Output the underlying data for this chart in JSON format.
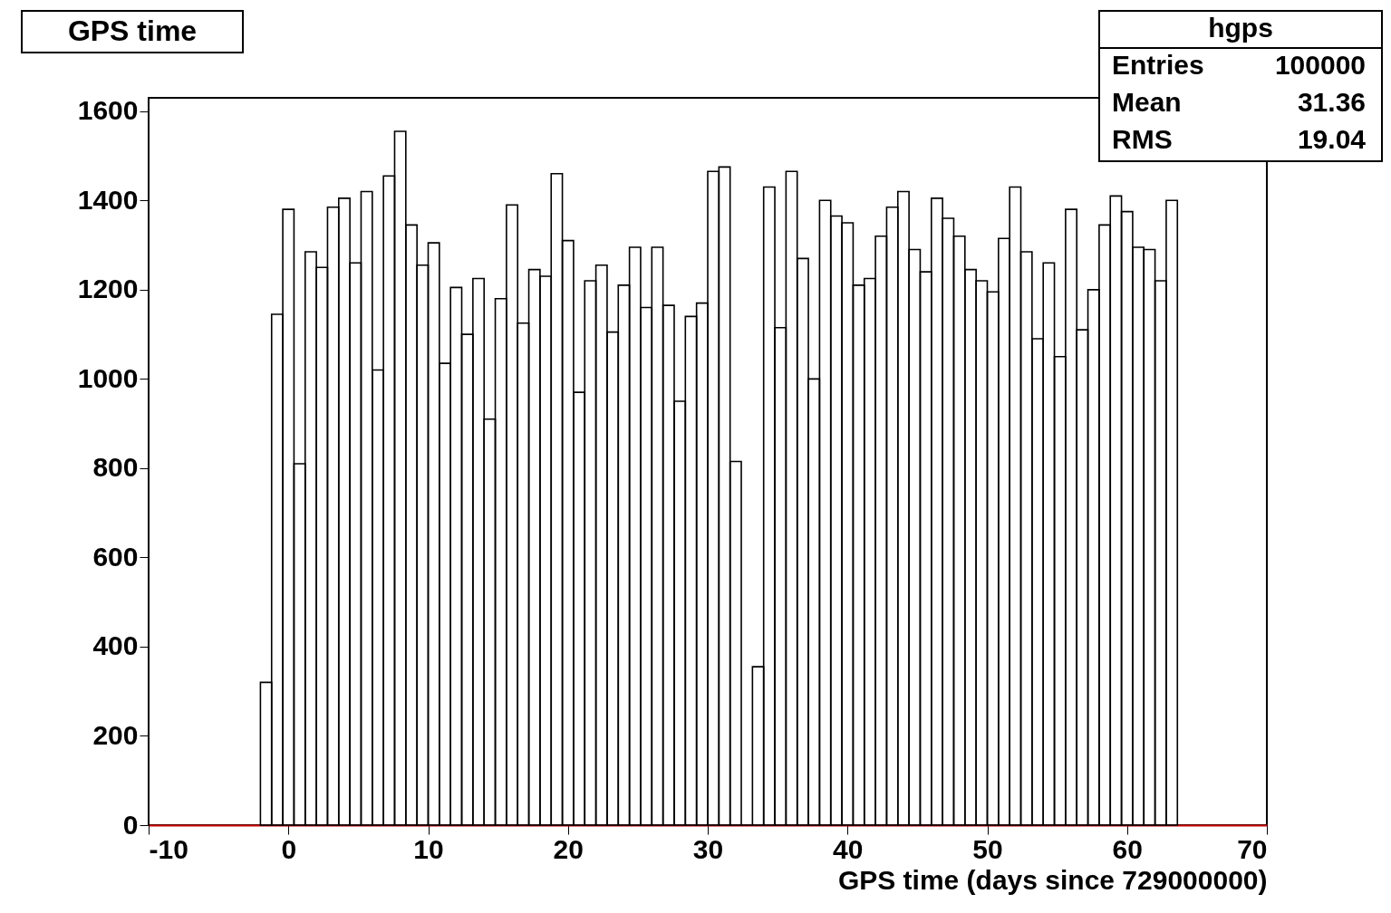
{
  "chart_data": {
    "type": "histogram",
    "title": "GPS time",
    "xlabel": "GPS time (days since 729000000)",
    "bins": [
      -2.0,
      -1.2,
      -0.4,
      0.4,
      1.2,
      2.0,
      2.8,
      3.6,
      4.4,
      5.2,
      6.0,
      6.8,
      7.6,
      8.4,
      9.2,
      10.0,
      10.8,
      11.6,
      12.4,
      13.2,
      14.0,
      14.8,
      15.6,
      16.4,
      17.2,
      18.0,
      18.8,
      19.6,
      20.4,
      21.2,
      22.0,
      22.8,
      23.6,
      24.4,
      25.2,
      26.0,
      26.8,
      27.6,
      28.4,
      29.2,
      30.0,
      30.8,
      31.6,
      32.4,
      33.2,
      34.0,
      34.8,
      35.6,
      36.4,
      37.2,
      38.0,
      38.8,
      39.6,
      40.4,
      41.2,
      42.0,
      42.8,
      43.6,
      44.4,
      45.2,
      46.0,
      46.8,
      47.6,
      48.4,
      49.2,
      50.0,
      50.8,
      51.6,
      52.4,
      53.2,
      54.0,
      54.8,
      55.6,
      56.4,
      57.2,
      58.0,
      58.8,
      59.6,
      60.4,
      61.2,
      62.0,
      62.8,
      63.6
    ],
    "values": [
      320,
      1145,
      1380,
      810,
      1285,
      1250,
      1385,
      1405,
      1260,
      1420,
      1020,
      1455,
      1555,
      1345,
      1255,
      1305,
      1035,
      1205,
      1100,
      1225,
      910,
      1180,
      1390,
      1125,
      1245,
      1230,
      1460,
      1310,
      970,
      1220,
      1255,
      1105,
      1210,
      1295,
      1160,
      1295,
      1165,
      950,
      1140,
      1170,
      1465,
      1475,
      815,
      0,
      355,
      1430,
      1115,
      1465,
      1270,
      1000,
      1400,
      1365,
      1350,
      1210,
      1225,
      1320,
      1385,
      1420,
      1290,
      1240,
      1405,
      1360,
      1320,
      1245,
      1220,
      1195,
      1315,
      1430,
      1285,
      1090,
      1260,
      1050,
      1380,
      1110,
      1200,
      1345,
      1410,
      1375,
      1295,
      1290,
      1220,
      1400
    ],
    "color": "#000000",
    "xlim": [
      -10,
      70
    ],
    "ylim": [
      0,
      1630
    ],
    "xticks": [
      -10,
      0,
      10,
      20,
      30,
      40,
      50,
      60,
      70
    ],
    "yticks": [
      0,
      200,
      400,
      600,
      800,
      1000,
      1200,
      1400,
      1600
    ],
    "grid": false,
    "annotations": [
      "hgps",
      "Entries 100000",
      "Mean 31.36",
      "RMS 19.04"
    ]
  }
}
